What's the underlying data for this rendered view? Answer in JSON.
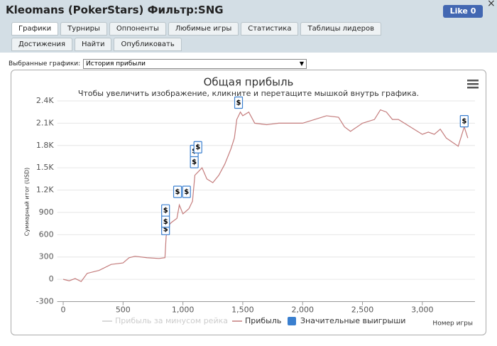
{
  "header": {
    "title": "Kleomans (PokerStars) Фильтр:SNG",
    "like": "Like 0",
    "close": "×"
  },
  "tabs": [
    "Графики",
    "Турниры",
    "Оппоненты",
    "Любимые игры",
    "Статистика",
    "Таблицы лидеров",
    "Достижения",
    "Найти",
    "Опубликовать"
  ],
  "selector": {
    "label": "Выбранные графики:",
    "value": "История прибыли"
  },
  "chart_data": {
    "type": "line",
    "title": "Общая прибыль",
    "subtitle": "Чтобы увеличить изображение, кликните и перетащите мышкой внутрь графика.",
    "xlabel": "Номер игры",
    "ylabel": "Суммарный итог (USD)",
    "xlim": [
      -50,
      3440
    ],
    "ylim": [
      -300,
      2400
    ],
    "xticks": [
      0,
      500,
      {
        "value": 1000,
        "label": "1,000"
      },
      {
        "value": 1500,
        "label": "1,500"
      },
      {
        "value": 2000,
        "label": "2,000"
      },
      {
        "value": 2500,
        "label": "2,500"
      },
      {
        "value": 3000,
        "label": "3,000"
      }
    ],
    "yticks": [
      -300,
      0,
      300,
      600,
      900,
      {
        "value": 1200,
        "label": "1.2K"
      },
      {
        "value": 1500,
        "label": "1.5K"
      },
      {
        "value": 1800,
        "label": "1.8K"
      },
      {
        "value": 2100,
        "label": "2.1K"
      },
      {
        "value": 2400,
        "label": "2.4K"
      }
    ],
    "grid": true,
    "hidden_series": {
      "name": "Прибыль за минусом рейка",
      "color": "#cccccc"
    },
    "series": [
      {
        "name": "Прибыль",
        "color": "#c47c7c",
        "x": [
          0,
          50,
          100,
          150,
          200,
          300,
          400,
          500,
          550,
          600,
          700,
          800,
          850,
          860,
          880,
          900,
          950,
          970,
          1000,
          1050,
          1080,
          1100,
          1130,
          1160,
          1200,
          1250,
          1300,
          1350,
          1400,
          1430,
          1450,
          1480,
          1500,
          1550,
          1600,
          1700,
          1800,
          2000,
          2100,
          2200,
          2300,
          2350,
          2400,
          2500,
          2600,
          2650,
          2700,
          2750,
          2800,
          2900,
          3000,
          3050,
          3100,
          3150,
          3200,
          3300,
          3350,
          3380
        ],
        "values": [
          0,
          -20,
          10,
          -30,
          80,
          120,
          200,
          220,
          290,
          310,
          290,
          280,
          290,
          580,
          720,
          760,
          820,
          1000,
          880,
          950,
          1050,
          1400,
          1450,
          1500,
          1350,
          1300,
          1400,
          1550,
          1750,
          1900,
          2150,
          2250,
          2200,
          2250,
          2100,
          2080,
          2100,
          2100,
          2150,
          2200,
          2180,
          2050,
          1990,
          2100,
          2150,
          2280,
          2250,
          2150,
          2150,
          2050,
          1950,
          1980,
          1950,
          2020,
          1900,
          1790,
          2050,
          1900
        ]
      }
    ],
    "flags": {
      "name": "Значительные выигрыши",
      "color": "#3a7fcf",
      "symbol": "$",
      "x": [
        855,
        855,
        855,
        955,
        1030,
        1095,
        1095,
        1125,
        1465,
        3350
      ],
      "values": [
        600,
        700,
        850,
        1100,
        1100,
        1500,
        1650,
        1700,
        2300,
        2050
      ]
    }
  }
}
